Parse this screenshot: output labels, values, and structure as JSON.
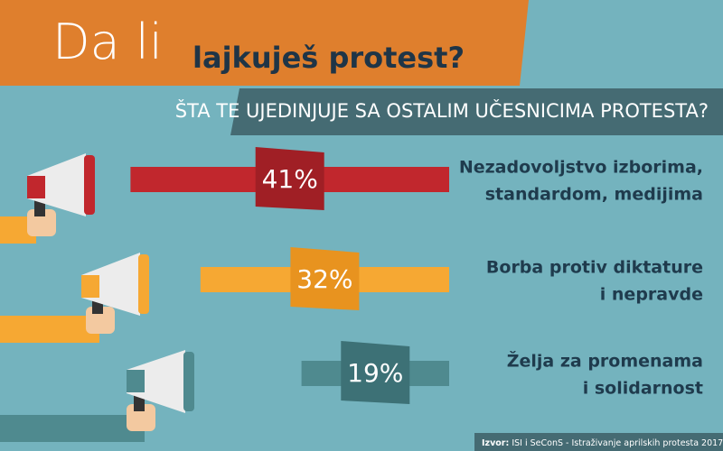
{
  "chart_data": {
    "type": "bar",
    "title_light": "Da li",
    "title_bold": "lajkuješ protest?",
    "subtitle": "ŠTA TE UJEDINJUJE SA OSTALIM UČESNICIMA PROTESTA?",
    "categories": [
      [
        "Nezadovoljstvo izborima,",
        "standardom, medijima"
      ],
      [
        "Borba protiv diktature",
        "i nepravde"
      ],
      [
        "Želja za promenama",
        "i solidarnost"
      ]
    ],
    "values": [
      41,
      32,
      19
    ],
    "value_labels": [
      "41%",
      "32%",
      "19%"
    ],
    "colors": [
      "#c1272d",
      "#f6a833",
      "#4f8a8f"
    ],
    "tag_colors": [
      "#a01f25",
      "#e8931f",
      "#3d7176"
    ],
    "source_label": "Izvor:",
    "source": "ISI i SeConS - Istraživanje aprilskih protesta 2017."
  }
}
